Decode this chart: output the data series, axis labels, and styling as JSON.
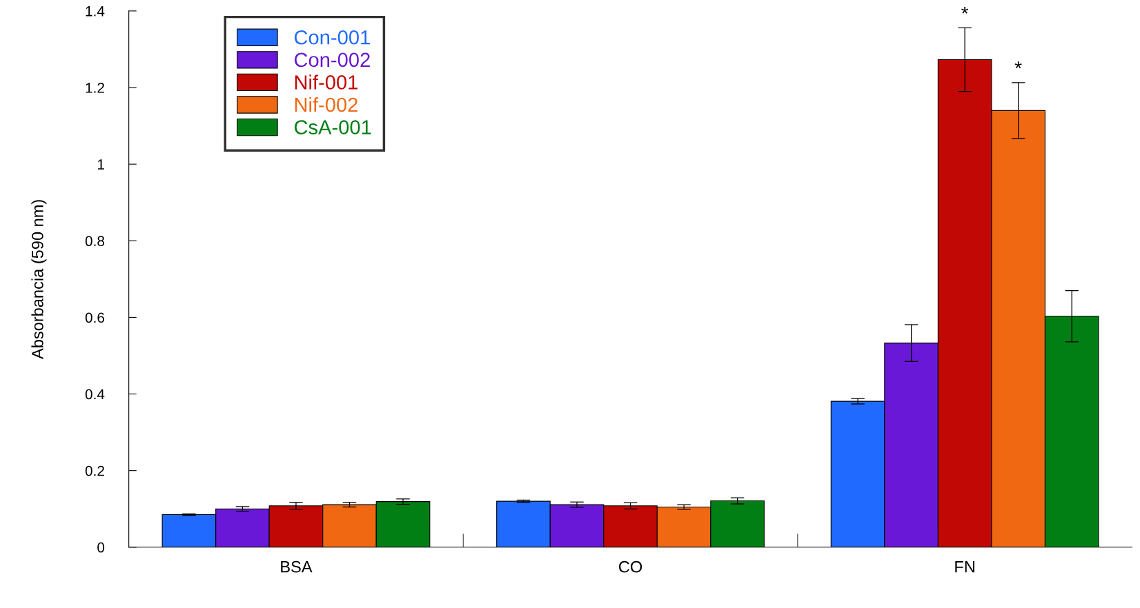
{
  "chart_data": {
    "type": "bar",
    "ylabel": "Absorbancia (590 nm)",
    "categories": [
      "BSA",
      "CO",
      "FN"
    ],
    "series": [
      {
        "name": "Con-001",
        "color": "#206aff",
        "values": [
          0.085,
          0.12,
          0.381
        ],
        "errors": [
          0.002,
          0.003,
          0.007
        ]
      },
      {
        "name": "Con-002",
        "color": "#6818d6",
        "values": [
          0.1,
          0.111,
          0.533
        ],
        "errors": [
          0.006,
          0.007,
          0.048
        ]
      },
      {
        "name": "Nif-001",
        "color": "#c20804",
        "values": [
          0.108,
          0.108,
          1.273
        ],
        "errors": [
          0.009,
          0.008,
          0.083
        ]
      },
      {
        "name": "Nif-002",
        "color": "#f06812",
        "values": [
          0.111,
          0.105,
          1.14
        ],
        "errors": [
          0.006,
          0.006,
          0.073
        ]
      },
      {
        "name": "CsA-001",
        "color": "#017f14",
        "values": [
          0.119,
          0.121,
          0.603
        ],
        "errors": [
          0.007,
          0.008,
          0.067
        ]
      }
    ],
    "ylim": [
      0,
      1.4
    ],
    "yticks": [
      0,
      0.2,
      0.4,
      0.6,
      0.8,
      1,
      1.2,
      1.4
    ],
    "legend": "top left",
    "grid": false,
    "annotations": [
      {
        "text": "*",
        "x": "FN",
        "y": 1.356
      },
      {
        "text": "*",
        "x": "FN",
        "y": 1.213
      }
    ]
  }
}
